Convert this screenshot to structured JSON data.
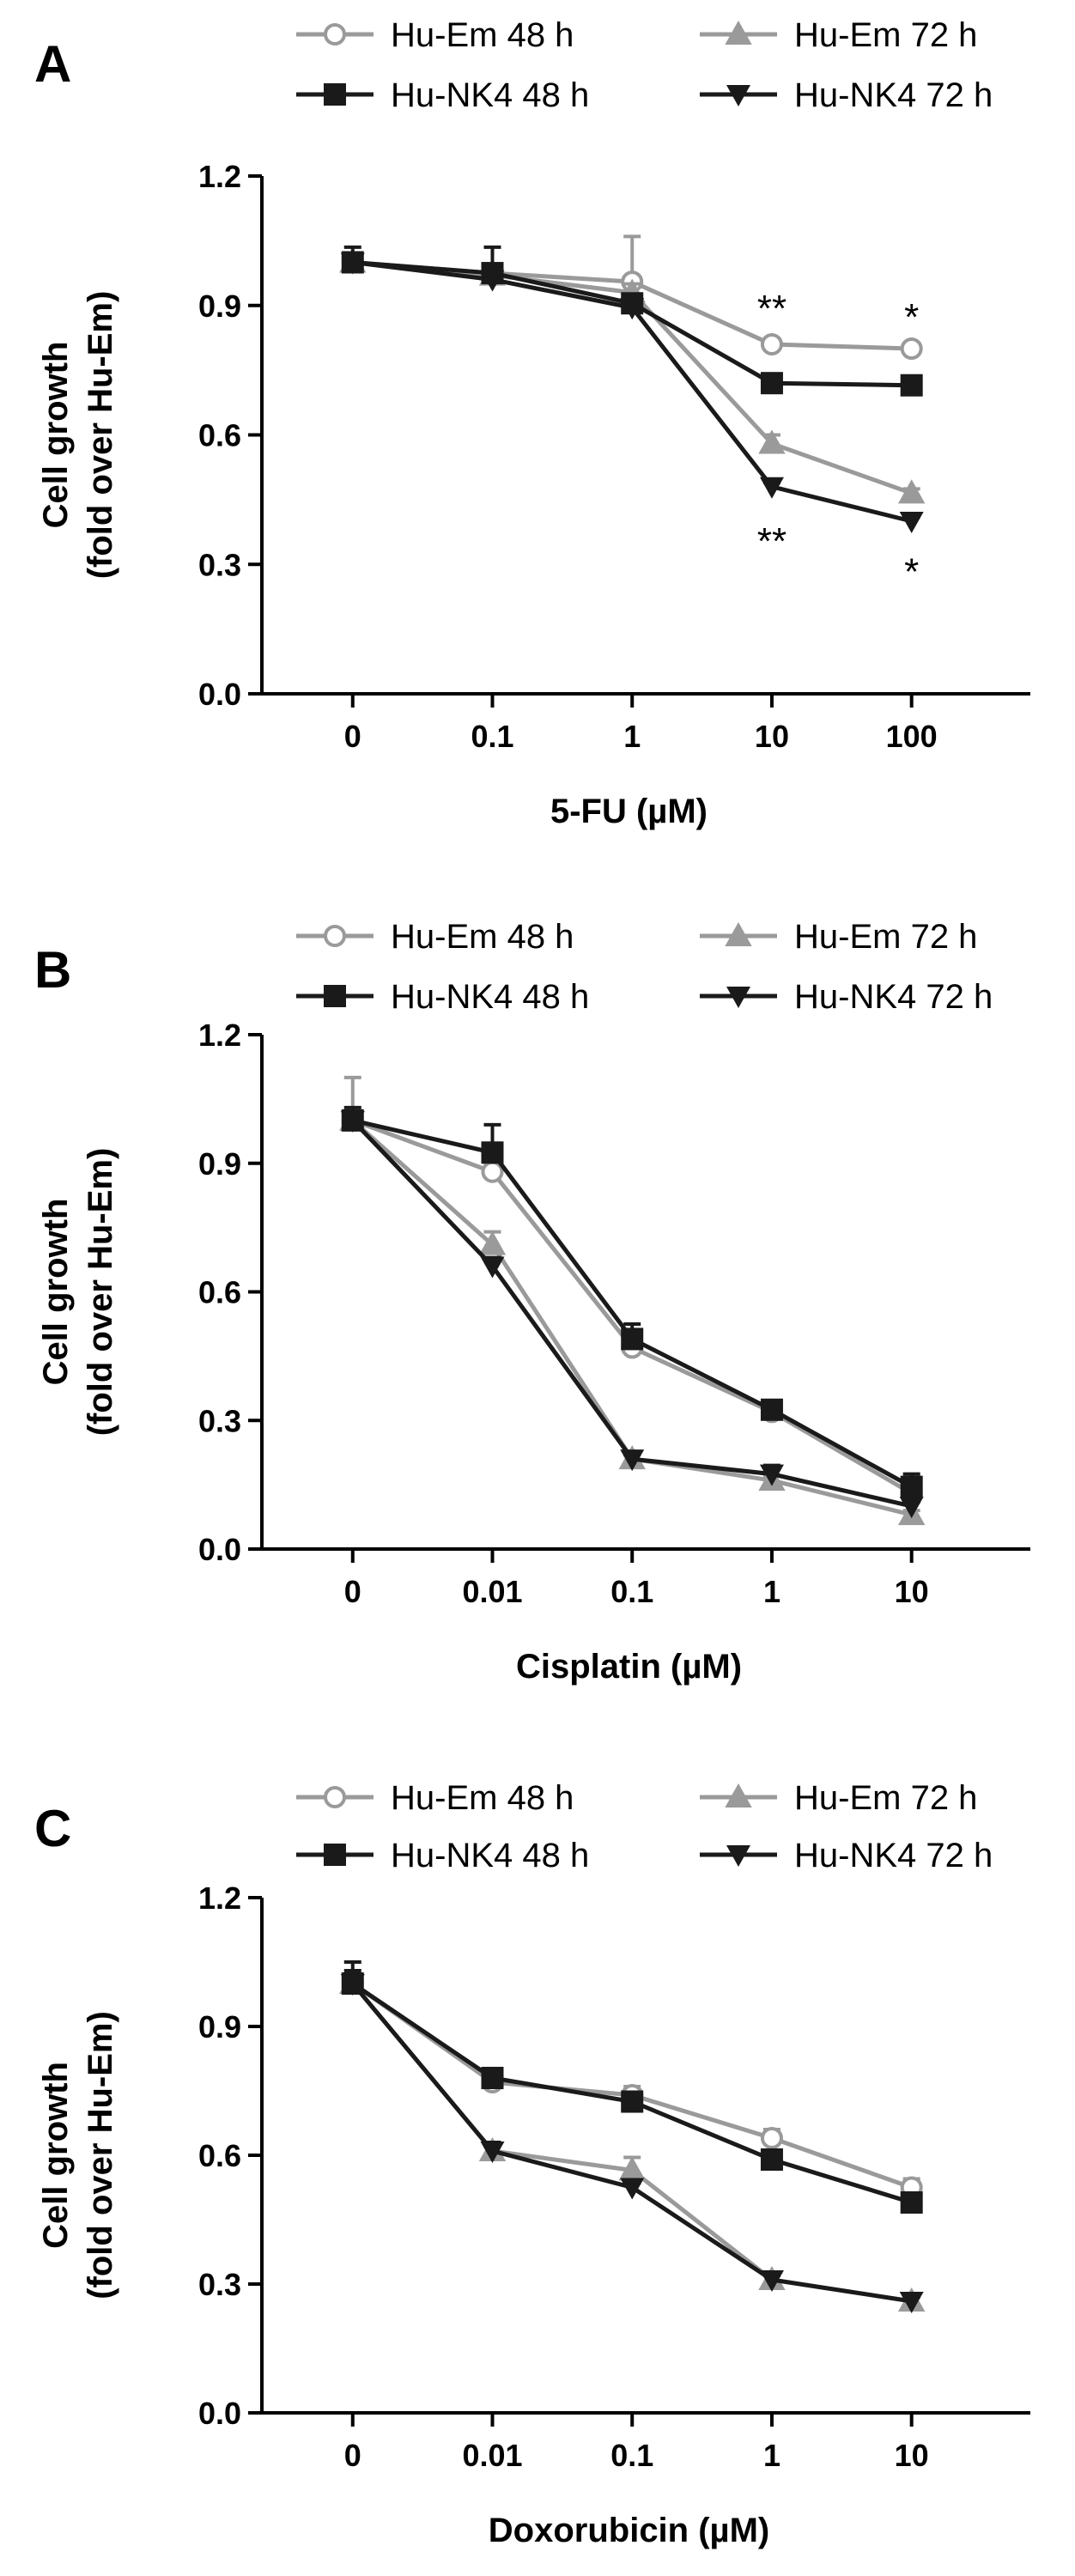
{
  "colors": {
    "gray": "#9a9a9a",
    "black": "#1a1a1a"
  },
  "chart_data": [
    {
      "type": "line",
      "panel": "A",
      "xlabel": "5-FU (µM)",
      "ylabel": "Cell growth\n(fold over Hu-Em)",
      "categories": [
        "0",
        "0.1",
        "1",
        "10",
        "100"
      ],
      "ylim": [
        0,
        1.2
      ],
      "yticks": [
        "0.0",
        "0.3",
        "0.6",
        "0.9",
        "1.2"
      ],
      "legend_position": "top",
      "series": [
        {
          "name": "Hu-Em 48 h",
          "marker": "circle-open",
          "color": "#9a9a9a",
          "values": [
            1.0,
            0.975,
            0.955,
            0.81,
            0.8
          ],
          "errors": [
            0.02,
            0.02,
            0.105,
            0.01,
            0.01
          ]
        },
        {
          "name": "Hu-Em 72 h",
          "marker": "triangle-up",
          "color": "#9a9a9a",
          "values": [
            1.0,
            0.97,
            0.93,
            0.58,
            0.465
          ],
          "errors": [
            0.02,
            0.02,
            0.02,
            0.02,
            0.01
          ]
        },
        {
          "name": "Hu-NK4 48 h",
          "marker": "square",
          "color": "#1a1a1a",
          "values": [
            1.0,
            0.975,
            0.905,
            0.72,
            0.715
          ],
          "errors": [
            0.035,
            0.06,
            0.02,
            0.01,
            0.01
          ]
        },
        {
          "name": "Hu-NK4 72 h",
          "marker": "triangle-down",
          "color": "#1a1a1a",
          "values": [
            1.0,
            0.96,
            0.895,
            0.48,
            0.4
          ],
          "errors": [
            0.02,
            0.02,
            0.02,
            0.01,
            0.01
          ]
        }
      ],
      "annotations": [
        {
          "text": "**",
          "category": "10",
          "y": 0.9
        },
        {
          "text": "*",
          "category": "100",
          "y": 0.88
        },
        {
          "text": "**",
          "category": "10",
          "y": 0.36
        },
        {
          "text": "*",
          "category": "100",
          "y": 0.29
        }
      ]
    },
    {
      "type": "line",
      "panel": "B",
      "xlabel": "Cisplatin (µM)",
      "ylabel": "Cell growth\n(fold over Hu-Em)",
      "categories": [
        "0",
        "0.01",
        "0.1",
        "1",
        "10"
      ],
      "ylim": [
        0,
        1.2
      ],
      "yticks": [
        "0.0",
        "0.3",
        "0.6",
        "0.9",
        "1.2"
      ],
      "legend_position": "top",
      "series": [
        {
          "name": "Hu-Em 48 h",
          "marker": "circle-open",
          "color": "#9a9a9a",
          "values": [
            1.0,
            0.88,
            0.47,
            0.32,
            0.13
          ],
          "errors": [
            0.1,
            0.02,
            0.02,
            0.01,
            0.02
          ]
        },
        {
          "name": "Hu-Em 72 h",
          "marker": "triangle-up",
          "color": "#9a9a9a",
          "values": [
            1.0,
            0.71,
            0.21,
            0.16,
            0.08
          ],
          "errors": [
            0.02,
            0.03,
            0.01,
            0.01,
            0.01
          ]
        },
        {
          "name": "Hu-NK4 48 h",
          "marker": "square",
          "color": "#1a1a1a",
          "values": [
            1.0,
            0.925,
            0.49,
            0.325,
            0.145
          ],
          "errors": [
            0.03,
            0.065,
            0.035,
            0.01,
            0.03
          ]
        },
        {
          "name": "Hu-NK4 72 h",
          "marker": "triangle-down",
          "color": "#1a1a1a",
          "values": [
            1.0,
            0.66,
            0.21,
            0.175,
            0.1
          ],
          "errors": [
            0.02,
            0.02,
            0.01,
            0.02,
            0.01
          ]
        }
      ],
      "annotations": []
    },
    {
      "type": "line",
      "panel": "C",
      "xlabel": "Doxorubicin (µM)",
      "ylabel": "Cell growth\n(fold over Hu-Em)",
      "categories": [
        "0",
        "0.01",
        "0.1",
        "1",
        "10"
      ],
      "ylim": [
        0,
        1.2
      ],
      "yticks": [
        "0.0",
        "0.3",
        "0.6",
        "0.9",
        "1.2"
      ],
      "legend_position": "top",
      "series": [
        {
          "name": "Hu-Em 48 h",
          "marker": "circle-open",
          "color": "#9a9a9a",
          "values": [
            1.0,
            0.77,
            0.74,
            0.64,
            0.525
          ],
          "errors": [
            0.02,
            0.02,
            0.02,
            0.02,
            0.02
          ]
        },
        {
          "name": "Hu-Em 72 h",
          "marker": "triangle-up",
          "color": "#9a9a9a",
          "values": [
            1.0,
            0.61,
            0.565,
            0.31,
            0.26
          ],
          "errors": [
            0.02,
            0.02,
            0.03,
            0.01,
            0.01
          ]
        },
        {
          "name": "Hu-NK4 48 h",
          "marker": "square",
          "color": "#1a1a1a",
          "values": [
            1.0,
            0.78,
            0.725,
            0.59,
            0.49
          ],
          "errors": [
            0.05,
            0.02,
            0.02,
            0.02,
            0.02
          ]
        },
        {
          "name": "Hu-NK4 72 h",
          "marker": "triangle-down",
          "color": "#1a1a1a",
          "values": [
            1.0,
            0.61,
            0.525,
            0.31,
            0.26
          ],
          "errors": [
            0.03,
            0.02,
            0.01,
            0.01,
            0.01
          ]
        }
      ],
      "annotations": []
    }
  ]
}
